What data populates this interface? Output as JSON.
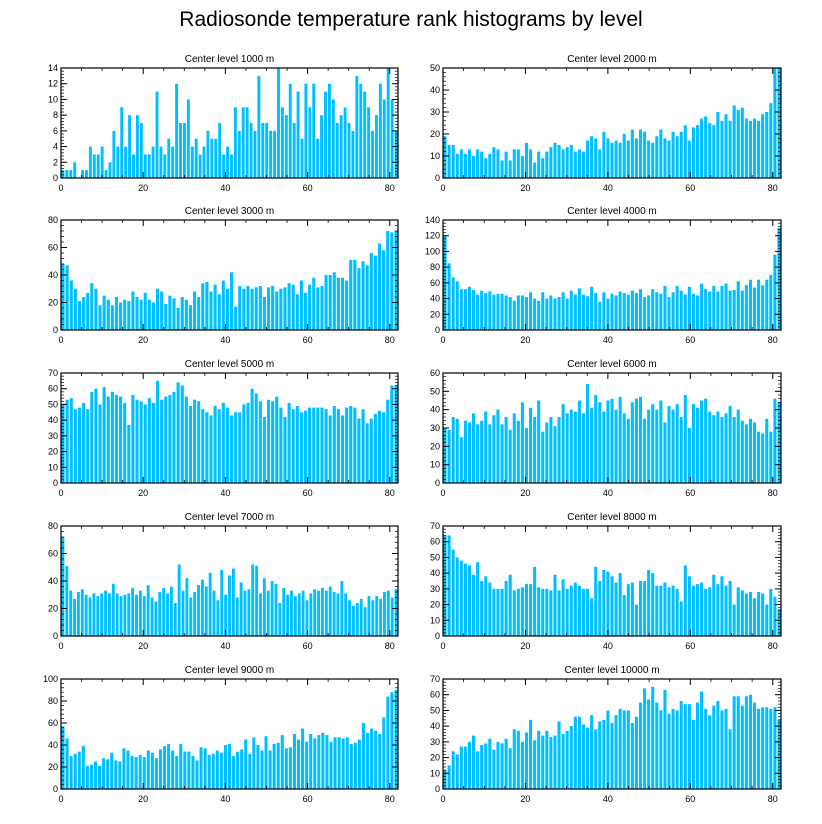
{
  "page": {
    "title": "Radiosonde temperature rank histograms by level"
  },
  "style": {
    "bar_color": "#00BFFF",
    "axis_color": "#000000"
  },
  "chart_data": [
    {
      "type": "bar",
      "title": "Center level 1000 m",
      "xlim": [
        0,
        82
      ],
      "ylim": [
        0,
        14
      ],
      "xticks": [
        0,
        20,
        40,
        60,
        80
      ],
      "yticks": [
        0,
        2,
        4,
        6,
        8,
        10,
        12,
        14
      ],
      "values": [
        1,
        1,
        1,
        2,
        0,
        1,
        1,
        4,
        3,
        3,
        4,
        1,
        2,
        6,
        4,
        9,
        4,
        8,
        3,
        8,
        7,
        3,
        3,
        4,
        11,
        4,
        3,
        5,
        4,
        12,
        7,
        7,
        10,
        4,
        5,
        3,
        4,
        6,
        5,
        5,
        7,
        3,
        4,
        3,
        9,
        6,
        9,
        9,
        7,
        6,
        13,
        7,
        7,
        6,
        6,
        14,
        9,
        8,
        12,
        7,
        11,
        5,
        12,
        9,
        12,
        5,
        8,
        11,
        12,
        10,
        7,
        8,
        9,
        7,
        6,
        13,
        12,
        11,
        9,
        6,
        8,
        12,
        10,
        14,
        10,
        6
      ],
      "x_start": 0
    },
    {
      "type": "bar",
      "title": "Center level 2000 m",
      "xlim": [
        0,
        82
      ],
      "ylim": [
        0,
        50
      ],
      "xticks": [
        0,
        20,
        40,
        60,
        80
      ],
      "yticks": [
        0,
        10,
        20,
        30,
        40,
        50
      ],
      "values": [
        19,
        15,
        15,
        11,
        13,
        11,
        13,
        10,
        13,
        12,
        9,
        11,
        14,
        13,
        8,
        12,
        8,
        13,
        13,
        10,
        16,
        13,
        7,
        12,
        9,
        12,
        14,
        16,
        15,
        13,
        14,
        15,
        12,
        13,
        12,
        17,
        19,
        18,
        13,
        21,
        18,
        16,
        17,
        16,
        20,
        17,
        22,
        18,
        22,
        21,
        17,
        16,
        19,
        22,
        18,
        17,
        21,
        19,
        21,
        24,
        17,
        23,
        24,
        27,
        28,
        25,
        24,
        30,
        26,
        29,
        26,
        33,
        31,
        32,
        27,
        26,
        27,
        26,
        29,
        30,
        34,
        51,
        50
      ],
      "x_start": 0
    },
    {
      "type": "bar",
      "title": "Center level 3000 m",
      "xlim": [
        0,
        82
      ],
      "ylim": [
        0,
        80
      ],
      "xticks": [
        0,
        20,
        40,
        60,
        80
      ],
      "yticks": [
        0,
        20,
        40,
        60,
        80
      ],
      "values": [
        48,
        47,
        36,
        30,
        21,
        24,
        27,
        34,
        30,
        18,
        25,
        22,
        18,
        24,
        20,
        22,
        21,
        28,
        24,
        22,
        27,
        22,
        20,
        30,
        28,
        19,
        25,
        23,
        16,
        24,
        22,
        18,
        28,
        24,
        34,
        35,
        28,
        33,
        26,
        36,
        30,
        42,
        17,
        32,
        30,
        32,
        30,
        31,
        32,
        24,
        31,
        32,
        28,
        30,
        31,
        34,
        33,
        26,
        36,
        27,
        33,
        38,
        31,
        32,
        40,
        40,
        42,
        38,
        38,
        36,
        51,
        51,
        45,
        50,
        47,
        56,
        54,
        63,
        58,
        72,
        71,
        72
      ],
      "x_start": 0
    },
    {
      "type": "bar",
      "title": "Center level 4000 m",
      "xlim": [
        0,
        82
      ],
      "ylim": [
        0,
        140
      ],
      "xticks": [
        0,
        20,
        40,
        60,
        80
      ],
      "yticks": [
        0,
        20,
        40,
        60,
        80,
        100,
        120,
        140
      ],
      "values": [
        120,
        85,
        67,
        62,
        52,
        52,
        55,
        51,
        45,
        50,
        47,
        49,
        45,
        46,
        46,
        44,
        42,
        37,
        44,
        44,
        42,
        48,
        40,
        37,
        48,
        40,
        44,
        40,
        42,
        48,
        40,
        50,
        45,
        53,
        45,
        43,
        55,
        47,
        36,
        48,
        40,
        46,
        44,
        49,
        47,
        45,
        50,
        47,
        52,
        42,
        44,
        52,
        48,
        46,
        56,
        42,
        48,
        56,
        50,
        45,
        55,
        46,
        44,
        59,
        52,
        49,
        56,
        49,
        56,
        59,
        50,
        51,
        62,
        50,
        57,
        64,
        54,
        64,
        57,
        64,
        70,
        96,
        130
      ],
      "x_start": 0
    },
    {
      "type": "bar",
      "title": "Center level 5000 m",
      "xlim": [
        0,
        82
      ],
      "ylim": [
        0,
        70
      ],
      "xticks": [
        0,
        20,
        40,
        60,
        80
      ],
      "yticks": [
        0,
        10,
        20,
        30,
        40,
        50,
        60,
        70
      ],
      "values": [
        50,
        53,
        54,
        47,
        48,
        51,
        47,
        58,
        60,
        50,
        61,
        55,
        58,
        56,
        55,
        51,
        37,
        56,
        53,
        52,
        50,
        54,
        51,
        65,
        53,
        55,
        56,
        58,
        64,
        62,
        55,
        49,
        53,
        52,
        47,
        45,
        43,
        49,
        47,
        51,
        48,
        43,
        45,
        45,
        50,
        51,
        60,
        57,
        52,
        42,
        53,
        52,
        55,
        48,
        42,
        51,
        47,
        49,
        45,
        46,
        48,
        48,
        48,
        48,
        47,
        43,
        49,
        47,
        43,
        48,
        49,
        48,
        41,
        47,
        38,
        41,
        44,
        46,
        45,
        53,
        62,
        62
      ],
      "x_start": 0
    },
    {
      "type": "bar",
      "title": "Center level 6000 m",
      "xlim": [
        0,
        82
      ],
      "ylim": [
        0,
        60
      ],
      "xticks": [
        0,
        20,
        40,
        60,
        80
      ],
      "yticks": [
        0,
        10,
        20,
        30,
        40,
        50,
        60
      ],
      "values": [
        30,
        29,
        36,
        35,
        25,
        34,
        33,
        38,
        32,
        34,
        39,
        32,
        37,
        40,
        32,
        36,
        29,
        38,
        34,
        44,
        30,
        41,
        36,
        45,
        28,
        33,
        36,
        31,
        36,
        43,
        38,
        40,
        39,
        45,
        38,
        54,
        41,
        48,
        44,
        39,
        45,
        46,
        40,
        47,
        38,
        35,
        44,
        46,
        47,
        35,
        40,
        43,
        40,
        45,
        33,
        42,
        40,
        43,
        36,
        48,
        30,
        43,
        41,
        45,
        46,
        39,
        37,
        39,
        36,
        38,
        42,
        36,
        40,
        34,
        32,
        35,
        33,
        28,
        27,
        35,
        28,
        46,
        44
      ],
      "x_start": 0
    },
    {
      "type": "bar",
      "title": "Center level 7000 m",
      "xlim": [
        0,
        82
      ],
      "ylim": [
        0,
        80
      ],
      "xticks": [
        0,
        20,
        40,
        60,
        80
      ],
      "yticks": [
        0,
        20,
        40,
        60,
        80
      ],
      "values": [
        72,
        51,
        33,
        27,
        32,
        34,
        30,
        28,
        31,
        29,
        31,
        33,
        31,
        38,
        31,
        29,
        30,
        31,
        35,
        30,
        33,
        29,
        37,
        28,
        25,
        32,
        35,
        31,
        36,
        24,
        52,
        33,
        42,
        28,
        32,
        37,
        41,
        36,
        46,
        33,
        26,
        48,
        30,
        44,
        49,
        28,
        39,
        33,
        34,
        52,
        51,
        31,
        42,
        33,
        40,
        38,
        24,
        35,
        30,
        33,
        29,
        31,
        33,
        26,
        31,
        34,
        33,
        35,
        33,
        36,
        32,
        31,
        40,
        31,
        26,
        22,
        24,
        27,
        21,
        29,
        26,
        29,
        27,
        32,
        33,
        28,
        34
      ],
      "x_start": 0
    },
    {
      "type": "bar",
      "title": "Center level 8000 m",
      "xlim": [
        0,
        82
      ],
      "ylim": [
        0,
        70
      ],
      "xticks": [
        0,
        20,
        40,
        60,
        80
      ],
      "yticks": [
        0,
        10,
        20,
        30,
        40,
        50,
        60,
        70
      ],
      "values": [
        64,
        64,
        55,
        50,
        48,
        46,
        45,
        39,
        47,
        35,
        38,
        34,
        30,
        30,
        30,
        35,
        39,
        29,
        30,
        31,
        33,
        33,
        44,
        31,
        30,
        30,
        29,
        39,
        29,
        36,
        30,
        32,
        34,
        32,
        30,
        30,
        24,
        44,
        35,
        42,
        41,
        38,
        34,
        40,
        26,
        33,
        34,
        20,
        35,
        35,
        42,
        40,
        32,
        32,
        34,
        31,
        32,
        30,
        22,
        45,
        38,
        32,
        33,
        34,
        30,
        31,
        39,
        33,
        38,
        32,
        35,
        20,
        31,
        29,
        27,
        28,
        24,
        28,
        27,
        20,
        30,
        25,
        17
      ],
      "x_start": 0
    },
    {
      "type": "bar",
      "title": "Center level 9000 m",
      "xlim": [
        0,
        82
      ],
      "ylim": [
        0,
        100
      ],
      "xticks": [
        0,
        20,
        40,
        60,
        80
      ],
      "yticks": [
        0,
        20,
        40,
        60,
        80,
        100
      ],
      "values": [
        57,
        46,
        30,
        32,
        34,
        39,
        21,
        22,
        25,
        21,
        28,
        27,
        33,
        26,
        25,
        37,
        35,
        30,
        29,
        31,
        29,
        35,
        33,
        28,
        36,
        39,
        41,
        35,
        30,
        41,
        34,
        34,
        30,
        26,
        38,
        37,
        31,
        32,
        35,
        33,
        40,
        41,
        30,
        34,
        36,
        45,
        32,
        47,
        40,
        35,
        48,
        35,
        41,
        42,
        49,
        37,
        38,
        50,
        45,
        55,
        43,
        50,
        46,
        49,
        51,
        49,
        43,
        47,
        47,
        46,
        47,
        41,
        42,
        45,
        60,
        51,
        55,
        53,
        50,
        65,
        84,
        88,
        90
      ],
      "x_start": 0
    },
    {
      "type": "bar",
      "title": "Center level 10000 m",
      "xlim": [
        0,
        82
      ],
      "ylim": [
        0,
        70
      ],
      "xticks": [
        0,
        20,
        40,
        60,
        80
      ],
      "yticks": [
        0,
        10,
        20,
        30,
        40,
        50,
        60,
        70
      ],
      "values": [
        12,
        15,
        24,
        22,
        27,
        27,
        30,
        34,
        24,
        28,
        29,
        32,
        25,
        30,
        29,
        32,
        26,
        38,
        37,
        30,
        36,
        44,
        31,
        37,
        34,
        37,
        33,
        34,
        43,
        35,
        37,
        40,
        46,
        46,
        41,
        39,
        47,
        38,
        43,
        44,
        50,
        42,
        47,
        51,
        50,
        50,
        42,
        46,
        55,
        64,
        57,
        65,
        55,
        50,
        63,
        48,
        51,
        50,
        56,
        54,
        54,
        44,
        55,
        62,
        51,
        47,
        53,
        56,
        50,
        51,
        38,
        59,
        59,
        53,
        59,
        60,
        55,
        51,
        52,
        52,
        51,
        52,
        44
      ],
      "x_start": 0
    }
  ]
}
